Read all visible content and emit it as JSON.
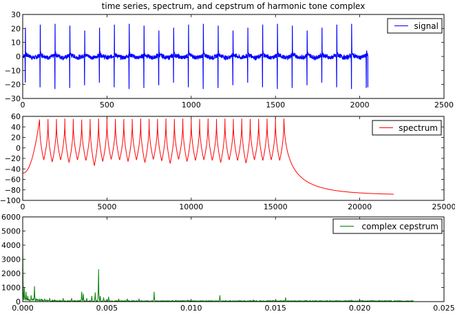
{
  "figure": {
    "title": "time series, spectrum, and cepstrum of harmonic tone complex",
    "colors": {
      "signal": "#0000ff",
      "spectrum": "#ff0000",
      "cepstrum": "#008000"
    }
  },
  "chart_data": [
    {
      "type": "line",
      "name": "time-series",
      "title": "time series, spectrum, and cepstrum of harmonic tone complex",
      "xlabel": "",
      "ylabel": "",
      "xlim": [
        0,
        2500
      ],
      "ylim": [
        -30,
        30
      ],
      "xticks": [
        0,
        500,
        1000,
        1500,
        2000,
        2500
      ],
      "xtick_labels": [
        "0",
        "500",
        "1000",
        "1500",
        "2000",
        "2500"
      ],
      "yticks": [
        -30,
        -20,
        -10,
        0,
        10,
        20,
        30
      ],
      "ytick_labels": [
        "−30",
        "−20",
        "−10",
        "0",
        "10",
        "20",
        "30"
      ],
      "grid": false,
      "legend": {
        "position": "upper right",
        "entries": [
          "signal"
        ]
      },
      "series": [
        {
          "name": "signal",
          "color": "#0000ff",
          "x_range": [
            0,
            2048
          ],
          "baseline": 0,
          "noise_amplitude": 1.5,
          "spike_period_samples": 88,
          "spike_positions": [
            16,
            104,
            192,
            280,
            368,
            456,
            544,
            632,
            720,
            808,
            896,
            984,
            1072,
            1160,
            1248,
            1336,
            1424,
            1512,
            1600,
            1688,
            1776,
            1864,
            1952,
            2040
          ],
          "spike_peaks": [
            20.5,
            22.7,
            23.3,
            22.0,
            18.5,
            20.5,
            22.7,
            23.3,
            22.0,
            18.5,
            20.5,
            22.7,
            23.3,
            22.0,
            18.5,
            20.5,
            22.7,
            23.3,
            22.0,
            18.5,
            20.5,
            22.7,
            23.3,
            0
          ],
          "spike_troughs": [
            -18.7,
            -22.0,
            -23.2,
            -22.5,
            -20.5,
            -18.7,
            -22.0,
            -23.2,
            -22.5,
            -20.5,
            -18.7,
            -22.0,
            -23.2,
            -22.5,
            -20.5,
            -18.7,
            -22.0,
            -23.2,
            -22.5,
            -20.5,
            -18.7,
            -22.0,
            -23.2,
            -22.5
          ]
        }
      ]
    },
    {
      "type": "line",
      "name": "spectrum",
      "xlabel": "",
      "ylabel": "",
      "xlim": [
        0,
        25000
      ],
      "ylim": [
        -100,
        60
      ],
      "xticks": [
        0,
        5000,
        10000,
        15000,
        20000,
        25000
      ],
      "xtick_labels": [
        "0",
        "5000",
        "10000",
        "15000",
        "20000",
        "25000"
      ],
      "yticks": [
        -100,
        -80,
        -60,
        -40,
        -20,
        0,
        20,
        40,
        60
      ],
      "ytick_labels": [
        "−100",
        "−80",
        "−60",
        "−40",
        "−20",
        "0",
        "20",
        "40",
        "60"
      ],
      "grid": false,
      "legend": {
        "position": "upper right",
        "entries": [
          "spectrum"
        ]
      },
      "series": [
        {
          "name": "spectrum",
          "color": "#ff0000",
          "x_range": [
            0,
            22050
          ],
          "start_value": -48,
          "harmonic_spacing_hz": 500,
          "harmonics_hz": [
            1000,
            1500,
            2000,
            2500,
            3000,
            3500,
            4000,
            4500,
            5000,
            5500,
            6000,
            6500,
            7000,
            7500,
            8000,
            8500,
            9000,
            9500,
            10000,
            10500,
            11000,
            11500,
            12000,
            12500,
            13000,
            13500,
            14000,
            14500,
            15000,
            15500
          ],
          "peak_values": [
            54,
            55,
            55,
            56,
            55,
            54,
            55,
            56,
            57,
            55,
            55,
            55,
            56,
            55,
            55,
            56,
            55,
            56,
            56,
            55,
            56,
            55,
            56,
            55,
            56,
            55,
            55,
            56,
            57,
            56
          ],
          "trough_values": [
            -23,
            -27,
            -23,
            -28,
            -23,
            -24,
            -34,
            -26,
            -22,
            -23,
            -26,
            -23,
            -28,
            -22,
            -25,
            -30,
            -22,
            -26,
            -24,
            -23,
            -24,
            -28,
            -23,
            -24,
            -29,
            -23,
            -24,
            -23,
            -24,
            -23
          ],
          "end_value": -90
        }
      ]
    },
    {
      "type": "line",
      "name": "cepstrum",
      "xlabel": "",
      "ylabel": "",
      "xlim": [
        0,
        0.025
      ],
      "ylim": [
        0,
        6000
      ],
      "xticks": [
        0,
        0.005,
        0.01,
        0.015,
        0.02,
        0.025
      ],
      "xtick_labels": [
        "0.000",
        "0.005",
        "0.010",
        "0.015",
        "0.020",
        "0.025"
      ],
      "yticks": [
        0,
        1000,
        2000,
        3000,
        4000,
        5000,
        6000
      ],
      "ytick_labels": [
        "0",
        "1000",
        "2000",
        "3000",
        "4000",
        "5000",
        "6000"
      ],
      "grid": false,
      "legend": {
        "position": "upper right",
        "entries": [
          "complex cepstrum"
        ]
      },
      "series": [
        {
          "name": "complex cepstrum",
          "color": "#008000",
          "x_range": [
            0,
            0.0232
          ],
          "peaks": [
            {
              "x": 0.0,
              "y": 4300
            },
            {
              "x": 0.0001,
              "y": 1000
            },
            {
              "x": 0.0002,
              "y": 700
            },
            {
              "x": 0.0003,
              "y": 400
            },
            {
              "x": 0.0005,
              "y": 450
            },
            {
              "x": 0.0007,
              "y": 1100
            },
            {
              "x": 0.001,
              "y": 200
            },
            {
              "x": 0.0013,
              "y": 200
            },
            {
              "x": 0.0016,
              "y": 250
            },
            {
              "x": 0.0019,
              "y": 150
            },
            {
              "x": 0.0022,
              "y": 100
            },
            {
              "x": 0.0024,
              "y": 250
            },
            {
              "x": 0.0029,
              "y": 250
            },
            {
              "x": 0.0035,
              "y": 700
            },
            {
              "x": 0.0036,
              "y": 550
            },
            {
              "x": 0.0038,
              "y": 250
            },
            {
              "x": 0.0041,
              "y": 400
            },
            {
              "x": 0.0043,
              "y": 650
            },
            {
              "x": 0.0045,
              "y": 2300
            },
            {
              "x": 0.0046,
              "y": 400
            },
            {
              "x": 0.0048,
              "y": 300
            },
            {
              "x": 0.0051,
              "y": 350
            },
            {
              "x": 0.0057,
              "y": 200
            },
            {
              "x": 0.0062,
              "y": 200
            },
            {
              "x": 0.0069,
              "y": 200
            },
            {
              "x": 0.0078,
              "y": 700
            },
            {
              "x": 0.0091,
              "y": 100
            },
            {
              "x": 0.0098,
              "y": 100
            },
            {
              "x": 0.0117,
              "y": 450
            },
            {
              "x": 0.0137,
              "y": 100
            },
            {
              "x": 0.0156,
              "y": 300
            },
            {
              "x": 0.0195,
              "y": 100
            },
            {
              "x": 0.0234,
              "y": 100
            },
            {
              "x": 0.0273,
              "y": 100
            }
          ]
        }
      ]
    }
  ]
}
